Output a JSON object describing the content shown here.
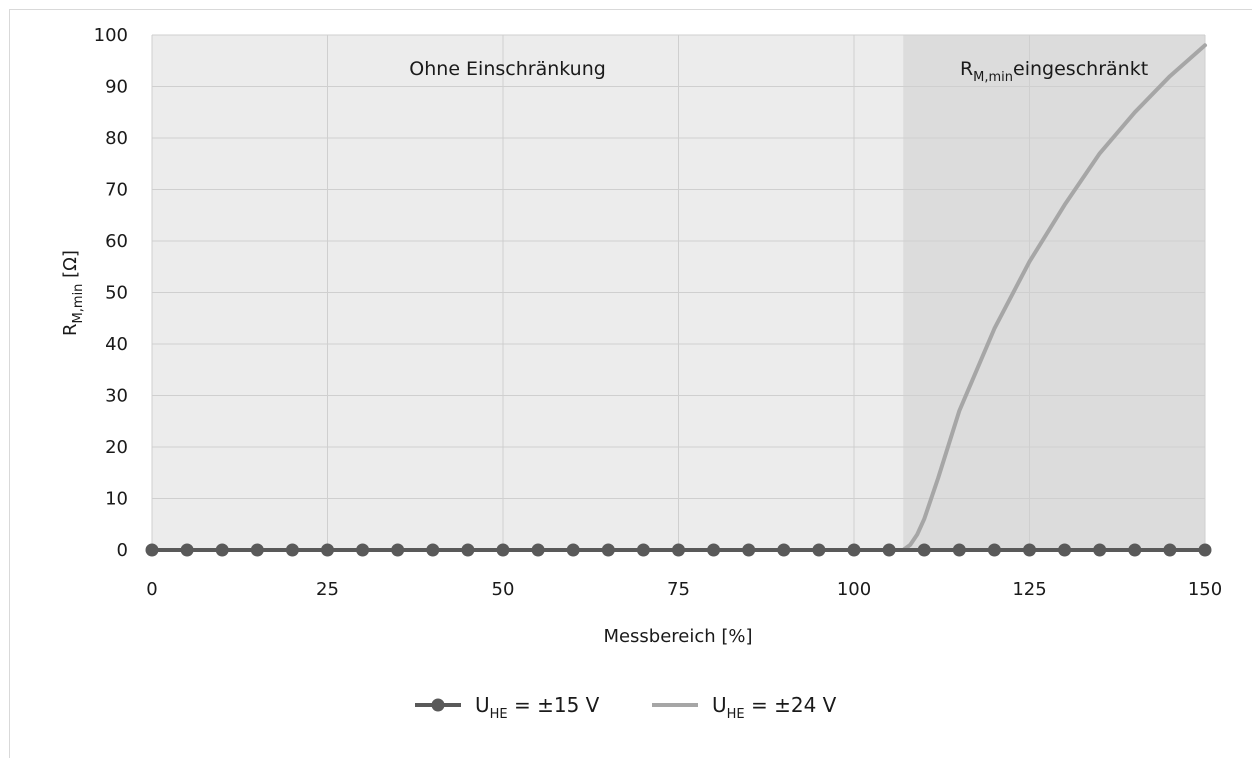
{
  "chart_data": {
    "type": "line",
    "xlabel": "Messbereich [%]",
    "ylabel": {
      "main": "R",
      "sub": "M,min",
      "unit": " [Ω]"
    },
    "xlim": [
      0,
      150
    ],
    "ylim": [
      0,
      100
    ],
    "x_ticks": [
      0,
      25,
      50,
      75,
      100,
      125,
      150
    ],
    "y_ticks": [
      0,
      10,
      20,
      30,
      40,
      50,
      60,
      70,
      80,
      90,
      100
    ],
    "grid": true,
    "legend_position": "bottom",
    "regions": [
      {
        "x_from": 0,
        "x_to": 107,
        "label": {
          "main": "Ohne Einschränkung",
          "sub": "",
          "rest": ""
        },
        "color": "#ececec"
      },
      {
        "x_from": 107,
        "x_to": 150,
        "label": {
          "main": "R",
          "sub": "M,min",
          "rest": "eingeschränkt"
        },
        "color": "#dcdcdc"
      }
    ],
    "series": [
      {
        "name": {
          "main": "U",
          "sub": "HE",
          "rest": " = ±15 V"
        },
        "color": "#595959",
        "markers": true,
        "x": [
          0,
          5,
          10,
          15,
          20,
          25,
          30,
          35,
          40,
          45,
          50,
          55,
          60,
          65,
          70,
          75,
          80,
          85,
          90,
          95,
          100,
          105,
          110,
          115,
          120,
          125,
          130,
          135,
          140,
          145,
          150
        ],
        "y": [
          0,
          0,
          0,
          0,
          0,
          0,
          0,
          0,
          0,
          0,
          0,
          0,
          0,
          0,
          0,
          0,
          0,
          0,
          0,
          0,
          0,
          0,
          0,
          0,
          0,
          0,
          0,
          0,
          0,
          0,
          0
        ]
      },
      {
        "name": {
          "main": "U",
          "sub": "HE",
          "rest": " = ±24 V"
        },
        "color": "#a6a6a6",
        "markers": false,
        "x": [
          0,
          10,
          20,
          30,
          40,
          50,
          60,
          70,
          80,
          90,
          100,
          105,
          107,
          108,
          109,
          110,
          112,
          115,
          120,
          125,
          130,
          135,
          140,
          145,
          150
        ],
        "y": [
          0,
          0,
          0,
          0,
          0,
          0,
          0,
          0,
          0,
          0,
          0,
          0,
          0,
          1,
          3,
          6,
          14,
          27,
          43,
          56,
          67,
          77,
          85,
          92,
          98
        ]
      }
    ]
  }
}
